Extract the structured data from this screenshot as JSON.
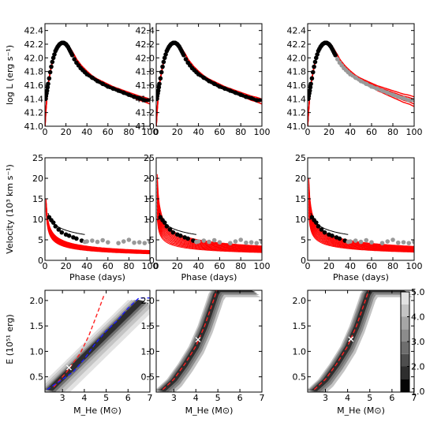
{
  "chart_data": [
    {
      "type": "line",
      "panels": [
        "light-curve-1",
        "light-curve-2",
        "light-curve-3"
      ],
      "ylabel": "log L (erg s⁻¹)",
      "xlim": [
        0,
        100
      ],
      "ylim": [
        41.0,
        42.5
      ],
      "x_ticks": [
        "0",
        "20",
        "40",
        "60",
        "80",
        "100"
      ],
      "y_ticks": [
        "41.0",
        "41.2",
        "41.4",
        "41.6",
        "41.8",
        "42.0",
        "42.2",
        "42.4"
      ],
      "series": [
        {
          "name": "",
          "style": "black-points",
          "x": [
            0.5,
            1,
            1.5,
            2,
            2.5,
            3,
            4,
            5,
            6,
            7,
            8,
            9,
            10,
            11,
            12,
            13,
            14,
            15,
            16,
            17,
            18,
            19,
            20,
            21,
            22,
            23,
            24,
            25,
            26,
            28,
            30,
            32,
            34,
            36,
            38,
            40,
            45,
            50,
            55,
            60,
            65,
            70,
            75,
            80,
            85,
            90,
            95
          ],
          "y": [
            41.4,
            41.44,
            41.48,
            41.52,
            41.57,
            41.62,
            41.7,
            41.79,
            41.87,
            41.94,
            42.0,
            42.05,
            42.1,
            42.13,
            42.16,
            42.18,
            42.2,
            42.21,
            42.22,
            42.22,
            42.22,
            42.21,
            42.2,
            42.18,
            42.16,
            42.13,
            42.1,
            42.07,
            42.04,
            41.98,
            41.93,
            41.89,
            41.85,
            41.82,
            41.79,
            41.76,
            41.71,
            41.66,
            41.62,
            41.58,
            41.55,
            41.52,
            41.49,
            41.46,
            41.43,
            41.41,
            41.38
          ]
        },
        {
          "name": "",
          "style": "red-models",
          "x": [
            0,
            1,
            2,
            3,
            4,
            6,
            8,
            10,
            12,
            14,
            16,
            18,
            20,
            22,
            24,
            26,
            28,
            30,
            35,
            40,
            45,
            50,
            55,
            60,
            65,
            70,
            75,
            80,
            85,
            90,
            95,
            100
          ],
          "y": [
            41.0,
            41.25,
            41.45,
            41.6,
            41.7,
            41.87,
            42.0,
            42.1,
            42.16,
            42.2,
            42.22,
            42.23,
            42.22,
            42.19,
            42.14,
            42.09,
            42.04,
            41.98,
            41.88,
            41.8,
            41.73,
            41.68,
            41.64,
            41.6,
            41.56,
            41.53,
            41.5,
            41.47,
            41.44,
            41.41,
            41.39,
            41.36
          ]
        }
      ],
      "panel_3_grey_from_phase": 28
    },
    {
      "type": "line",
      "panels": [
        "velocity-1",
        "velocity-2",
        "velocity-3"
      ],
      "ylabel": "Velocity (10³ km s⁻¹)",
      "xlabel": "Phase (days)",
      "xlim": [
        0,
        100
      ],
      "ylim": [
        0,
        25
      ],
      "x_ticks": [
        "0",
        "20",
        "40",
        "60",
        "80",
        "100"
      ],
      "y_ticks": [
        "0",
        "5",
        "10",
        "15",
        "20",
        "25"
      ],
      "series": [
        {
          "name": "",
          "style": "black-points",
          "x": [
            4,
            6,
            8,
            10,
            13,
            16,
            20,
            23,
            27,
            30,
            35
          ],
          "y": [
            10.5,
            9.8,
            9.2,
            8.3,
            7.5,
            6.8,
            6.3,
            6.0,
            5.6,
            5.3,
            4.8
          ]
        },
        {
          "name": "",
          "style": "grey-points",
          "x": [
            38,
            40,
            45,
            50,
            55,
            60,
            70,
            75,
            80,
            85,
            90,
            95,
            100
          ],
          "y": [
            4.5,
            4.6,
            4.8,
            4.5,
            4.9,
            4.4,
            4.2,
            4.6,
            5.0,
            4.3,
            4.4,
            4.2,
            4.5
          ]
        }
      ],
      "model_band_upper_panel_1": [
        {
          "t": 1,
          "v": 15
        },
        {
          "t": 100,
          "v": 2.4
        }
      ],
      "model_band_lower_panel_1": [
        {
          "t": 1,
          "v": 12
        },
        {
          "t": 100,
          "v": 1.6
        }
      ],
      "model_band_upper_panel_2": [
        {
          "t": 1,
          "v": 21
        },
        {
          "t": 100,
          "v": 3.5
        }
      ],
      "model_band_lower_panel_2": [
        {
          "t": 1,
          "v": 10
        },
        {
          "t": 100,
          "v": 1.9
        }
      ],
      "model_band_upper_panel_3": [
        {
          "t": 1,
          "v": 20
        },
        {
          "t": 100,
          "v": 3.4
        }
      ],
      "model_band_lower_panel_3": [
        {
          "t": 1,
          "v": 11
        },
        {
          "t": 100,
          "v": 2.0
        }
      ]
    },
    {
      "type": "heatmap",
      "panels": [
        "contour-1",
        "contour-2",
        "contour-3"
      ],
      "xlabel": "M_He (M⊙)",
      "ylabel": "E (10⁵¹ erg)",
      "xlim": [
        2.2,
        7.0
      ],
      "ylim": [
        0.2,
        2.2
      ],
      "x_ticks": [
        "3",
        "4",
        "5",
        "6",
        "7"
      ],
      "y_ticks": [
        "0.5",
        "1.0",
        "1.5",
        "2.0"
      ],
      "colorbar": {
        "ticks": [
          "1.0",
          "2.0",
          "3.0",
          "4.0",
          "5.0"
        ],
        "range": [
          1.0,
          5.0
        ],
        "levels": [
          {
            "from": 1.0,
            "to": 1.5,
            "color": "#050505"
          },
          {
            "from": 1.5,
            "to": 2.0,
            "color": "#2e2e2e"
          },
          {
            "from": 2.0,
            "to": 2.5,
            "color": "#4e4e4e"
          },
          {
            "from": 2.5,
            "to": 3.0,
            "color": "#6e6e6e"
          },
          {
            "from": 3.0,
            "to": 3.5,
            "color": "#8c8c8c"
          },
          {
            "from": 3.5,
            "to": 4.0,
            "color": "#a6a6a6"
          },
          {
            "from": 4.0,
            "to": 4.5,
            "color": "#c4c4c4"
          },
          {
            "from": 4.5,
            "to": 5.0,
            "color": "#e2e2e2"
          }
        ]
      },
      "red_dashed": [
        {
          "m": 2.5,
          "e": 0.25
        },
        {
          "m": 3.0,
          "e": 0.45
        },
        {
          "m": 3.5,
          "e": 0.75
        },
        {
          "m": 4.0,
          "e": 1.1
        },
        {
          "m": 4.4,
          "e": 1.5
        },
        {
          "m": 4.8,
          "e": 2.0
        },
        {
          "m": 4.95,
          "e": 2.2
        }
      ],
      "red_dashed_panel_1": [
        {
          "m": 2.6,
          "e": 0.3
        },
        {
          "m": 3.2,
          "e": 0.6
        },
        {
          "m": 3.8,
          "e": 0.95
        },
        {
          "m": 4.2,
          "e": 1.3
        },
        {
          "m": 4.6,
          "e": 1.75
        },
        {
          "m": 4.9,
          "e": 2.1
        }
      ],
      "blue_dashed_panel_1": [
        {
          "m": 2.3,
          "e": 0.25
        },
        {
          "m": 3.0,
          "e": 0.45
        },
        {
          "m": 3.5,
          "e": 0.6
        },
        {
          "m": 4.0,
          "e": 0.85
        },
        {
          "m": 4.5,
          "e": 1.15
        },
        {
          "m": 5.0,
          "e": 1.4
        },
        {
          "m": 5.5,
          "e": 1.6
        },
        {
          "m": 6.0,
          "e": 1.85
        },
        {
          "m": 6.5,
          "e": 2.05
        },
        {
          "m": 7.0,
          "e": 2.05
        }
      ],
      "best_fit": [
        {
          "m": 3.3,
          "e": 0.68
        },
        {
          "m": 4.1,
          "e": 1.23
        },
        {
          "m": 4.15,
          "e": 1.24
        }
      ],
      "best_fit_color": "#ffffff"
    }
  ]
}
